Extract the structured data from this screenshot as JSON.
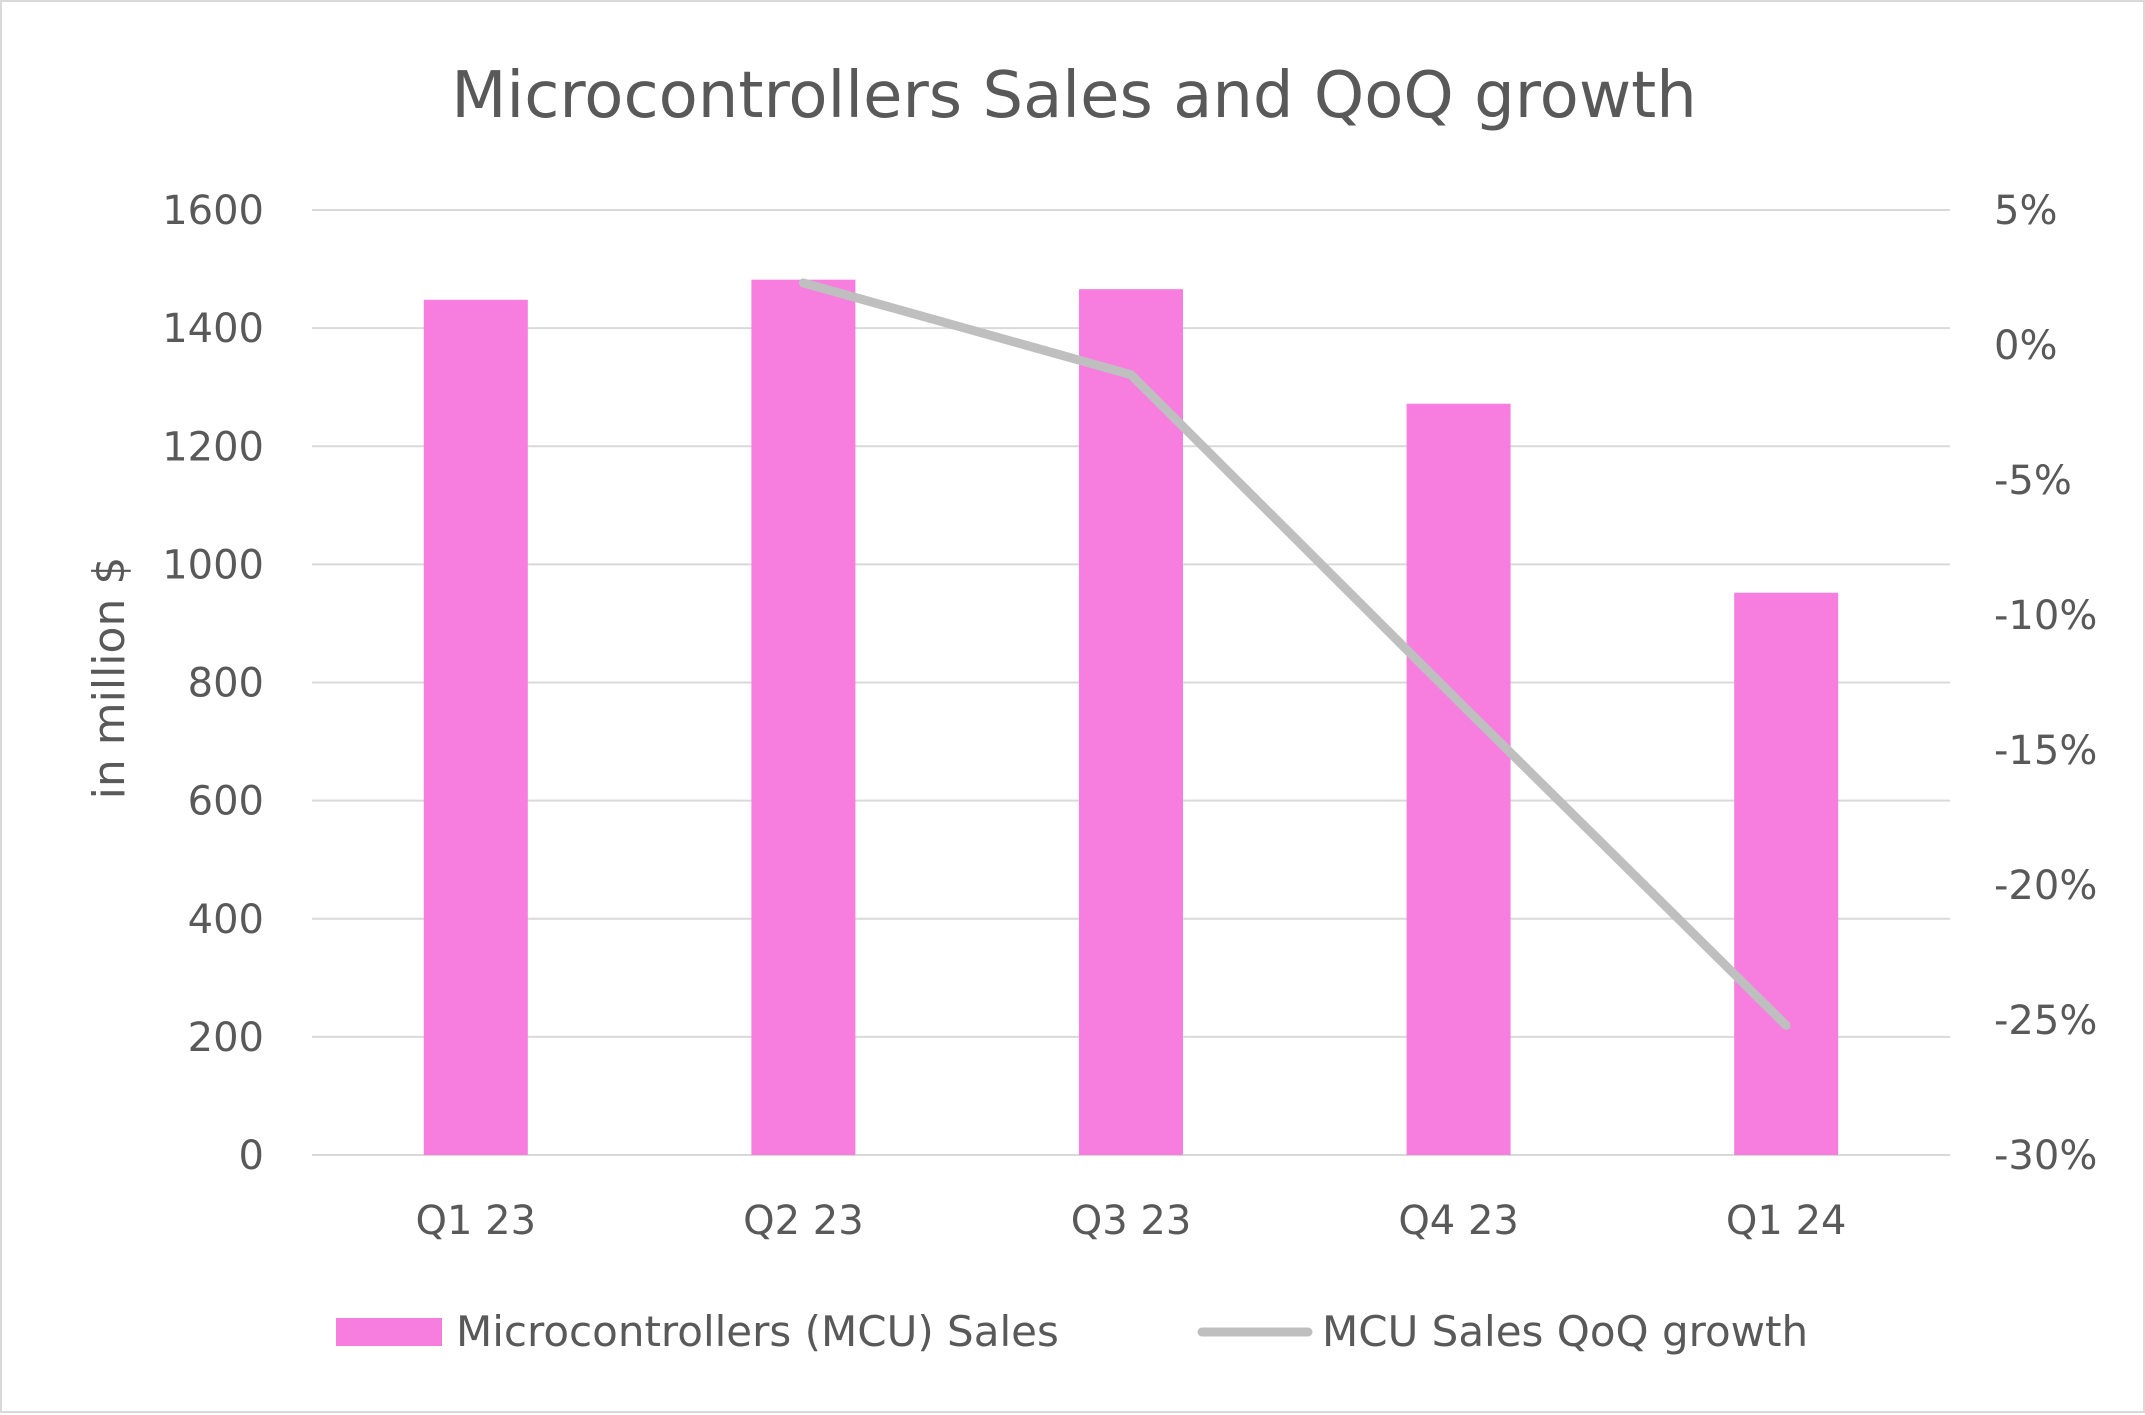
{
  "chart_data": {
    "type": "bar",
    "title": "Microcontrollers Sales and QoQ growth",
    "categories": [
      "Q1 23",
      "Q2 23",
      "Q3 23",
      "Q4 23",
      "Q1 24"
    ],
    "series": [
      {
        "name": "Microcontrollers (MCU) Sales",
        "type": "bar",
        "axis": "left",
        "color": "#f77ddf",
        "values": [
          1448,
          1482,
          1466,
          1272,
          952
        ]
      },
      {
        "name": "MCU Sales QoQ growth",
        "type": "line",
        "axis": "right",
        "color": "#bfbfbf",
        "values": [
          null,
          0.023,
          -0.011,
          -0.132,
          -0.252
        ]
      }
    ],
    "ylabel": "in million $",
    "ylim": [
      0,
      1600
    ],
    "yticks": [
      0,
      200,
      400,
      600,
      800,
      1000,
      1200,
      1400,
      1600
    ],
    "y2lim": [
      -0.3,
      0.05
    ],
    "y2ticks": [
      "-30%",
      "-25%",
      "-20%",
      "-15%",
      "-10%",
      "-5%",
      "0%",
      "5%"
    ],
    "y2tick_values": [
      -0.3,
      -0.25,
      -0.2,
      -0.15,
      -0.1,
      -0.05,
      0.0,
      0.05
    ],
    "grid": true,
    "legend_position": "bottom"
  }
}
